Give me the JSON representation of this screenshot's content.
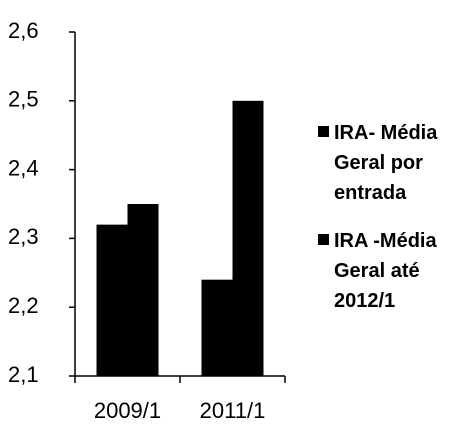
{
  "chart_data": {
    "type": "bar",
    "categories": [
      "2009/1",
      "2011/1"
    ],
    "series": [
      {
        "name": "IRA- Média Geral por entrada",
        "color": "#000000",
        "values": [
          2.32,
          2.24
        ]
      },
      {
        "name": "IRA -Média Geral até 2012/1",
        "color": "#000000",
        "values": [
          2.35,
          2.5
        ]
      }
    ],
    "ylim": [
      2.1,
      2.6
    ],
    "yticks": [
      {
        "value": 2.1,
        "label": "2,1"
      },
      {
        "value": 2.2,
        "label": "2,2"
      },
      {
        "value": 2.3,
        "label": "2,3"
      },
      {
        "value": 2.4,
        "label": "2,4"
      },
      {
        "value": 2.5,
        "label": "2,5"
      },
      {
        "value": 2.6,
        "label": "2,6"
      }
    ],
    "legend": "right"
  }
}
